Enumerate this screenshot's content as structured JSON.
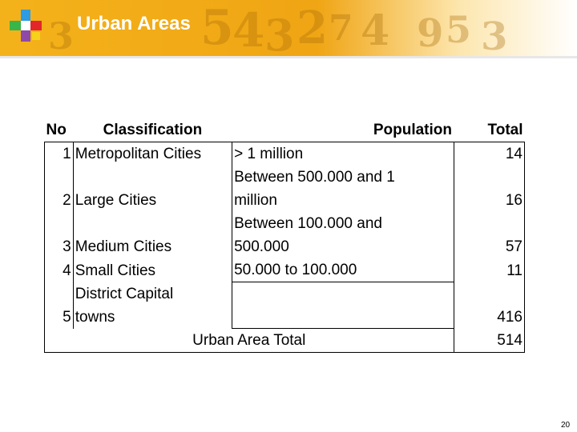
{
  "header": {
    "title": "Urban Areas",
    "logo_icon": "colorful-cross-logo",
    "bg_color": "#f4b21a"
  },
  "table": {
    "headers": {
      "no": "No",
      "classification": "Classification",
      "population": "Population",
      "total": "Total"
    },
    "rows": [
      {
        "no": "1",
        "classification": "Metropolitan Cities",
        "population": "> 1 million",
        "total": "14"
      },
      {
        "no": "2",
        "classification": "Large Cities",
        "population_line1": "Between 500.000 and 1",
        "population_line2": "million",
        "total": "16"
      },
      {
        "no": "3",
        "classification": "Medium Cities",
        "population_line1": "Between 100.000 and",
        "population_line2": "500.000",
        "total": "57"
      },
      {
        "no": "4",
        "classification": "Small Cities",
        "population": "50.000 to 100.000",
        "total": "11"
      },
      {
        "no": "5",
        "classification_line1": "District Capital",
        "classification_line2": "towns",
        "population": "",
        "total": "416"
      }
    ],
    "footer": {
      "label": "Urban Area Total",
      "total": "514"
    }
  },
  "page_number": "20"
}
